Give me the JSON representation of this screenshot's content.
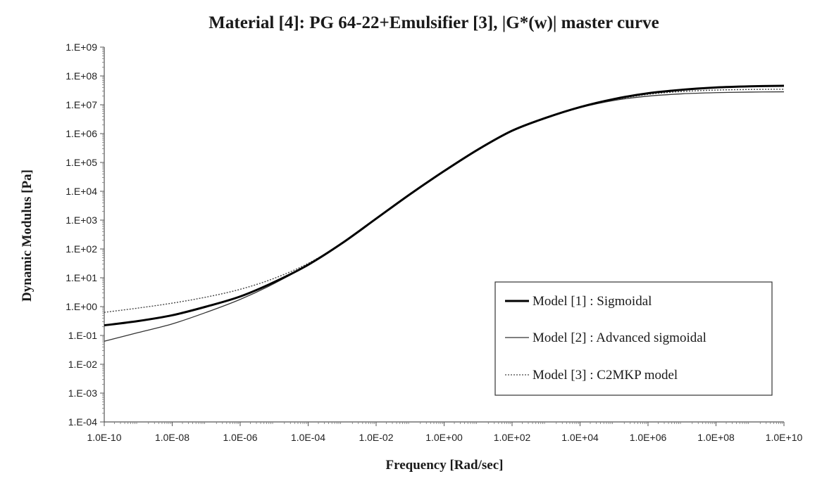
{
  "chart_data": {
    "type": "line",
    "title": "Material [4]: PG 64-22+Emulsifier [3], |G*(w)| master curve",
    "xlabel": "Frequency [Rad/sec]",
    "ylabel": "Dynamic Modulus [Pa]",
    "x_scale": "log",
    "y_scale": "log",
    "xlim_exp": [
      -10,
      10
    ],
    "ylim_exp": [
      -4,
      9
    ],
    "x_tick_labels": [
      "1.0E-10",
      "1.0E-08",
      "1.0E-06",
      "1.0E-04",
      "1.0E-02",
      "1.0E+00",
      "1.0E+02",
      "1.0E+04",
      "1.0E+06",
      "1.0E+08",
      "1.0E+10"
    ],
    "y_tick_labels": [
      "1.E-04",
      "1.E-03",
      "1.E-02",
      "1.E-01",
      "1.E+00",
      "1.E+01",
      "1.E+02",
      "1.E+03",
      "1.E+04",
      "1.E+05",
      "1.E+06",
      "1.E+07",
      "1.E+08",
      "1.E+09"
    ],
    "legend_position": "bottom-right",
    "series": [
      {
        "name": "Model [1] : Sigmoidal",
        "style": "thick-solid",
        "color": "#000000",
        "log10_x": [
          -10,
          -9,
          -8,
          -7,
          -6,
          -5,
          -4,
          -3,
          -2,
          -1,
          0,
          1,
          2,
          3,
          4,
          5,
          6,
          7,
          8,
          9,
          10
        ],
        "log10_y": [
          -0.65,
          -0.5,
          -0.3,
          0.0,
          0.35,
          0.85,
          1.45,
          2.2,
          3.05,
          3.9,
          4.7,
          5.45,
          6.1,
          6.55,
          6.92,
          7.2,
          7.4,
          7.52,
          7.6,
          7.64,
          7.66
        ]
      },
      {
        "name": "Model [2] : Advanced sigmoidal",
        "style": "thin-solid",
        "color": "#333333",
        "log10_x": [
          -10,
          -9,
          -8,
          -7,
          -6,
          -5,
          -4,
          -3,
          -2,
          -1,
          0,
          1,
          2,
          3,
          4,
          5,
          6,
          7,
          8,
          9,
          10
        ],
        "log10_y": [
          -1.2,
          -0.9,
          -0.6,
          -0.2,
          0.25,
          0.8,
          1.45,
          2.2,
          3.05,
          3.9,
          4.7,
          5.45,
          6.1,
          6.55,
          6.9,
          7.15,
          7.3,
          7.38,
          7.42,
          7.44,
          7.45
        ]
      },
      {
        "name": "Model [3] : C2MKP model",
        "style": "dotted",
        "color": "#444444",
        "log10_x": [
          -10,
          -9,
          -8,
          -7,
          -6,
          -5,
          -4,
          -3,
          -2,
          -1,
          0,
          1,
          2,
          3,
          4,
          5,
          6,
          7,
          8,
          9,
          10
        ],
        "log10_y": [
          -0.2,
          -0.05,
          0.12,
          0.33,
          0.6,
          0.98,
          1.5,
          2.2,
          3.05,
          3.9,
          4.7,
          5.45,
          6.1,
          6.55,
          6.9,
          7.17,
          7.36,
          7.46,
          7.51,
          7.53,
          7.54
        ]
      }
    ]
  }
}
